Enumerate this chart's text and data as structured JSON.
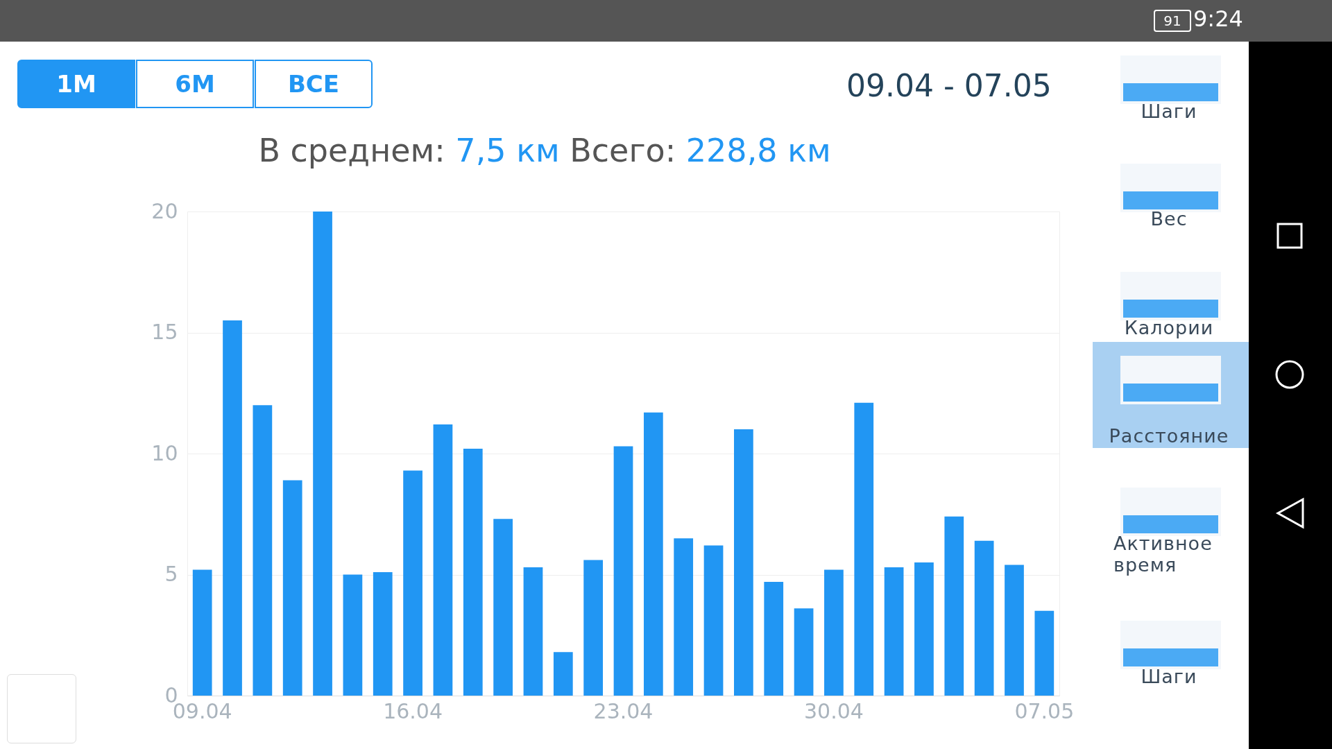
{
  "chart_data": {
    "type": "bar",
    "subtitle": "В среднем: 7,5 км  Всего: 228,8 км",
    "categories": [
      "09.04",
      null,
      null,
      null,
      null,
      null,
      null,
      "16.04",
      null,
      null,
      null,
      null,
      null,
      null,
      "23.04",
      null,
      null,
      null,
      null,
      null,
      null,
      "30.04",
      null,
      null,
      null,
      null,
      null,
      null,
      "07.05"
    ],
    "values": [
      5.2,
      15.5,
      12.0,
      8.9,
      20.0,
      5.0,
      5.1,
      9.3,
      11.2,
      10.2,
      7.3,
      5.3,
      1.8,
      5.6,
      10.3,
      11.7,
      6.5,
      6.2,
      11.0,
      4.7,
      3.6,
      5.2,
      12.1,
      5.3,
      5.5,
      7.4,
      6.4,
      5.4,
      3.5
    ],
    "color": "#2196f3",
    "ylim": [
      0,
      20
    ],
    "yticks": [
      0,
      5,
      10,
      15,
      20
    ],
    "grid": "y",
    "annotations": [
      "09.04 - 07.05",
      "1М",
      "6М",
      "ВСЕ",
      "Шаги",
      "Вес",
      "Калории",
      "Расстояние",
      "Активное время",
      "Шаги",
      "9:24",
      "91"
    ]
  }
}
